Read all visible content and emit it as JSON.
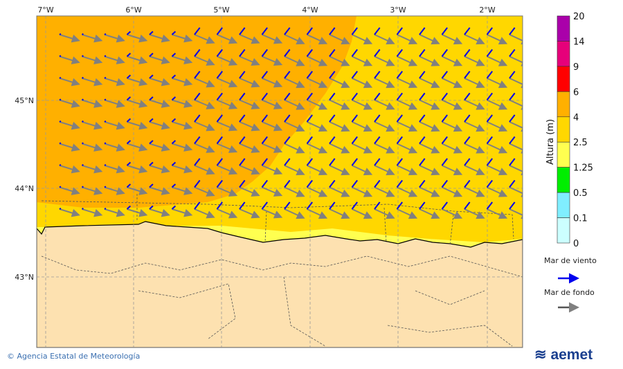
{
  "map": {
    "lon_ticks": [
      "7°W",
      "6°W",
      "5°W",
      "4°W",
      "3°W",
      "2°W"
    ],
    "lat_ticks": [
      "45°N",
      "44°N",
      "43°N"
    ],
    "colors": {
      "sea_orange": "#ffb000",
      "sea_gold": "#ffd700",
      "sea_yellow": "#ffff50",
      "land": "#fde1b0",
      "wind_arrow": "#0000ee",
      "swell_arrow": "#808080"
    }
  },
  "colorbar": {
    "title": "Altura (m)",
    "levels": [
      "20",
      "14",
      "9",
      "6",
      "4",
      "2.5",
      "1.25",
      "0.5",
      "0.1",
      "0"
    ],
    "colors": [
      "#aa00aa",
      "#e6007a",
      "#ff0000",
      "#ffb000",
      "#ffd700",
      "#ffff50",
      "#00ee00",
      "#80eeff",
      "#ccffff"
    ]
  },
  "legend": {
    "wind_sea": "Mar de viento",
    "swell": "Mar de fondo"
  },
  "footer": {
    "copyright": "© Agencia Estatal de Meteorología",
    "logo": "aemet"
  }
}
